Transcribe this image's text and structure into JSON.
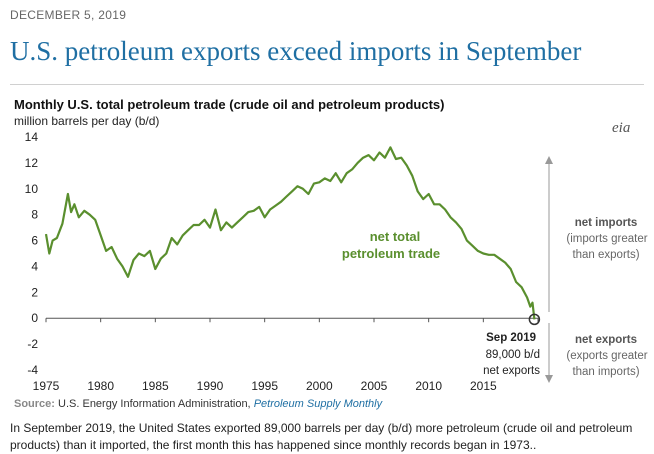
{
  "header": {
    "date": "DECEMBER 5, 2019",
    "headline": "U.S. petroleum exports exceed imports in September"
  },
  "logo": "eia",
  "chart_data": {
    "type": "line",
    "title": "Monthly U.S. total petroleum trade (crude oil and petroleum products)",
    "subtitle": "million barrels per day (b/d)",
    "xlim": [
      1975,
      2020
    ],
    "ylim": [
      -4,
      14
    ],
    "x_ticks": [
      "1975",
      "1980",
      "1985",
      "1990",
      "1995",
      "2000",
      "2005",
      "2010",
      "2015"
    ],
    "y_ticks": [
      "14",
      "12",
      "10",
      "8",
      "6",
      "4",
      "2",
      "0",
      "-2",
      "-4"
    ],
    "grid": false,
    "line_color": "#5a8f2e",
    "series": [
      {
        "name": "net total petroleum trade",
        "x": [
          1975.0,
          1975.3,
          1975.6,
          1976.0,
          1976.5,
          1977.0,
          1977.3,
          1977.6,
          1978.0,
          1978.5,
          1979.0,
          1979.5,
          1980.0,
          1980.5,
          1981.0,
          1981.5,
          1982.0,
          1982.5,
          1983.0,
          1983.5,
          1984.0,
          1984.5,
          1985.0,
          1985.5,
          1986.0,
          1986.5,
          1987.0,
          1987.5,
          1988.0,
          1988.5,
          1989.0,
          1989.5,
          1990.0,
          1990.5,
          1991.0,
          1991.5,
          1992.0,
          1992.5,
          1993.0,
          1993.5,
          1994.0,
          1994.5,
          1995.0,
          1995.5,
          1996.0,
          1996.5,
          1997.0,
          1997.5,
          1998.0,
          1998.5,
          1999.0,
          1999.5,
          2000.0,
          2000.5,
          2001.0,
          2001.5,
          2002.0,
          2002.5,
          2003.0,
          2003.5,
          2004.0,
          2004.5,
          2005.0,
          2005.5,
          2006.0,
          2006.5,
          2007.0,
          2007.5,
          2008.0,
          2008.5,
          2009.0,
          2009.5,
          2010.0,
          2010.5,
          2011.0,
          2011.5,
          2012.0,
          2012.5,
          2013.0,
          2013.5,
          2014.0,
          2014.5,
          2015.0,
          2015.5,
          2016.0,
          2016.5,
          2017.0,
          2017.5,
          2018.0,
          2018.5,
          2019.0,
          2019.3,
          2019.5,
          2019.67
        ],
        "values": [
          6.5,
          5.0,
          6.0,
          6.2,
          7.3,
          9.6,
          8.2,
          8.8,
          7.8,
          8.3,
          8.0,
          7.6,
          6.4,
          5.2,
          5.5,
          4.6,
          4.0,
          3.2,
          4.5,
          5.0,
          4.8,
          5.2,
          3.8,
          4.6,
          5.0,
          6.2,
          5.7,
          6.4,
          6.8,
          7.2,
          7.2,
          7.6,
          7.0,
          8.4,
          6.8,
          7.4,
          7.0,
          7.4,
          7.8,
          8.2,
          8.3,
          8.6,
          7.8,
          8.4,
          8.7,
          9.0,
          9.4,
          9.8,
          10.2,
          10.0,
          9.6,
          10.4,
          10.5,
          10.8,
          10.6,
          11.2,
          10.5,
          11.2,
          11.5,
          12.0,
          12.4,
          12.6,
          12.2,
          12.8,
          12.4,
          13.2,
          12.3,
          12.4,
          11.8,
          11.0,
          9.8,
          9.2,
          9.6,
          8.8,
          8.8,
          8.4,
          7.8,
          7.4,
          6.9,
          6.0,
          5.6,
          5.2,
          5.0,
          4.9,
          4.9,
          4.6,
          4.3,
          3.8,
          2.8,
          2.4,
          1.6,
          0.9,
          1.2,
          -0.089
        ]
      }
    ],
    "annotations": {
      "series_label_1": "net total",
      "series_label_2": "petroleum trade",
      "imports_title": "net imports",
      "imports_sub_1": "(imports greater",
      "imports_sub_2": "than exports)",
      "exports_title": "net exports",
      "exports_sub_1": "(exports greater",
      "exports_sub_2": "than imports)",
      "point_label": "Sep 2019",
      "point_value": "89,000 b/d",
      "point_note": "net exports"
    }
  },
  "source": {
    "label": "Source:",
    "text": "U.S. Energy Information Administration,",
    "publication": "Petroleum Supply Monthly"
  },
  "caption": "In September 2019, the United States exported 89,000 barrels per day (b/d) more petroleum (crude oil and petroleum products) than it imported, the first month this has happened since monthly records began in 1973.."
}
